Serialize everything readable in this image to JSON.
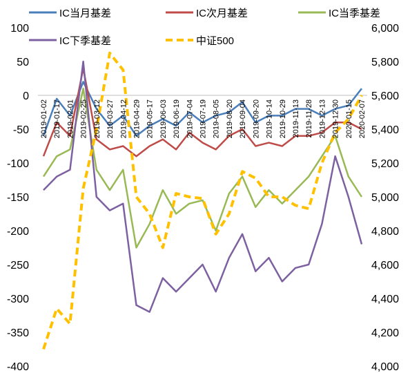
{
  "chart_data": {
    "type": "line",
    "left_axis": {
      "min": -400,
      "max": 100,
      "ticks": [
        "-400",
        "-350",
        "-300",
        "-250",
        "-200",
        "-150",
        "-100",
        "-50",
        "0",
        "50",
        "100"
      ]
    },
    "right_axis": {
      "min": 4000,
      "max": 6000,
      "ticks": [
        "4,000",
        "4,200",
        "4,400",
        "4,600",
        "4,800",
        "5,000",
        "5,200",
        "5,400",
        "5,600",
        "5,800",
        "6,000"
      ]
    },
    "x_categories": [
      "2019-01-02",
      "2019-01-17",
      "2019-02-01",
      "2019-02-25",
      "2019-03-12",
      "2019-03-27",
      "2019-04-12",
      "2019-04-29",
      "2019-05-17",
      "2019-06-03",
      "2019-06-19",
      "2019-07-04",
      "2019-07-19",
      "2019-08-05",
      "2019-08-20",
      "2019-09-04",
      "2019-09-20",
      "2019-10-14",
      "2019-10-29",
      "2019-11-13",
      "2019-11-28",
      "2019-12-13",
      "2019-12-30",
      "2020-01-15",
      "2020-02-07"
    ],
    "legend_position": "top",
    "series": [
      {
        "name": "IC当月基差",
        "axis": "left",
        "color": "#4a7ebb",
        "style": "solid",
        "values": [
          -60,
          -5,
          -30,
          20,
          -20,
          -45,
          -30,
          -60,
          -45,
          -35,
          -45,
          -25,
          -40,
          -30,
          -25,
          -10,
          -40,
          -30,
          -30,
          -20,
          -20,
          -30,
          -20,
          -15,
          10
        ]
      },
      {
        "name": "IC次月基差",
        "axis": "left",
        "color": "#be4b48",
        "style": "solid",
        "values": [
          -90,
          -40,
          -60,
          40,
          -65,
          -80,
          -75,
          -90,
          -75,
          -65,
          -80,
          -55,
          -70,
          -80,
          -60,
          -50,
          -75,
          -70,
          -75,
          -60,
          -60,
          -55,
          -40,
          -40,
          -50
        ]
      },
      {
        "name": "IC当季基差",
        "axis": "left",
        "color": "#98b954",
        "style": "solid",
        "values": [
          -120,
          -90,
          -80,
          10,
          -110,
          -140,
          -110,
          -225,
          -190,
          -140,
          -175,
          -160,
          -155,
          -200,
          -145,
          -120,
          -165,
          -140,
          -160,
          -140,
          -120,
          -90,
          -60,
          -120,
          -150
        ]
      },
      {
        "name": "IC下季基差",
        "axis": "left",
        "color": "#7d60a0",
        "style": "solid",
        "values": [
          -140,
          -120,
          -110,
          50,
          -150,
          -170,
          -160,
          -310,
          -320,
          -270,
          -290,
          -270,
          -250,
          -290,
          -240,
          -205,
          -260,
          -240,
          -275,
          -255,
          -250,
          -190,
          -90,
          -150,
          -220
        ]
      },
      {
        "name": "中证500",
        "axis": "right",
        "color": "#ffc000",
        "style": "dashed",
        "values": [
          4100,
          4340,
          4250,
          5050,
          5400,
          5850,
          5750,
          5000,
          4900,
          4700,
          5020,
          5000,
          4990,
          4780,
          4900,
          5150,
          5110,
          5000,
          5000,
          4950,
          4930,
          5200,
          5380,
          5460,
          5600
        ]
      }
    ]
  }
}
